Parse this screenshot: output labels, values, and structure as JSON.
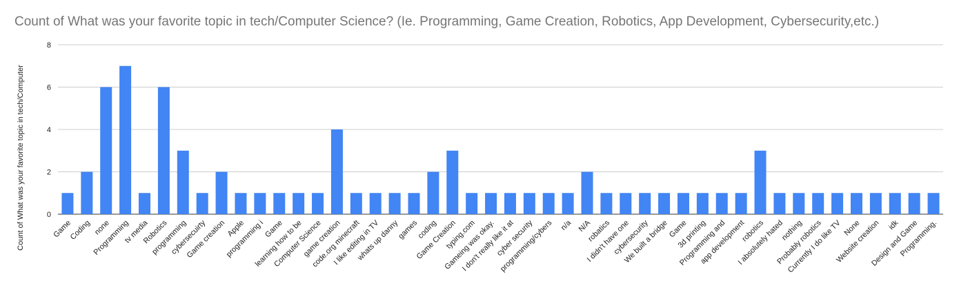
{
  "chart_data": {
    "type": "bar",
    "title": "Count of What was your favorite topic in tech/Computer Science? (Ie. Programming, Game Creation, Robotics, App Development, Cybersecurity,etc.)",
    "xlabel": "",
    "ylabel": "Count of What was your favorite topic in tech/Computer",
    "ylim": [
      0,
      8
    ],
    "yticks": [
      "0",
      "2",
      "4",
      "6",
      "8"
    ],
    "grid": true,
    "legend": "none",
    "bar_color": "#4285f4",
    "categories": [
      "Game",
      "Coding",
      "none",
      "Programming",
      "tv media",
      "Robotics",
      "programming",
      "cybersecuirty",
      "Game creation",
      "Apple",
      "programming i",
      "Game",
      "learning how to be",
      "Computer Science",
      "game creation",
      "code.org minecraft",
      "I like editing in TV",
      "whats up danny",
      "games",
      "coding",
      "Game Creation",
      "typing.com",
      "Gameing was okay.",
      "I don't really like it at",
      "cyber security",
      "programming/cybers",
      "n/a",
      "N/A",
      "robatics",
      "I didn't have one",
      "cybersecurity",
      "We built a bridge",
      "Game",
      "3d printing",
      "Programming and",
      "app development",
      "robotics",
      "I absolutely hated",
      "nothing",
      "Probably robotics",
      "Currently I do like TV",
      "None",
      "Website creation",
      "idk",
      "Design and Game",
      "Programming."
    ],
    "values": [
      1,
      2,
      6,
      7,
      1,
      6,
      3,
      1,
      2,
      1,
      1,
      1,
      1,
      1,
      4,
      1,
      1,
      1,
      1,
      2,
      3,
      1,
      1,
      1,
      1,
      1,
      1,
      2,
      1,
      1,
      1,
      1,
      1,
      1,
      1,
      1,
      3,
      1,
      1,
      1,
      1,
      1,
      1,
      1,
      1,
      1
    ]
  }
}
